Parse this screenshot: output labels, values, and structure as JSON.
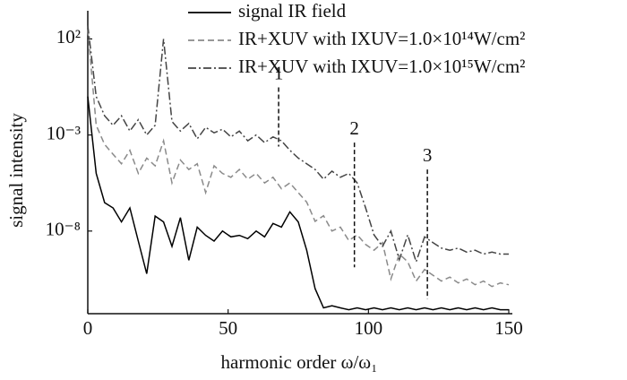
{
  "chart_data": {
    "type": "line",
    "x_label": "harmonic order ω/ω₁",
    "y_label": "signal intensity",
    "xlim": [
      0,
      150
    ],
    "xticks": [
      0,
      50,
      100,
      150
    ],
    "ylim": [
      5e-13,
      1000
    ],
    "yticks": [
      {
        "value": 100,
        "label": "10²"
      },
      {
        "value": 0.001,
        "label": "10⁻³"
      },
      {
        "value": 1e-08,
        "label": "10⁻⁸"
      }
    ],
    "y_scale": "log",
    "legend": "upper right",
    "x": [
      0,
      3,
      6,
      9,
      12,
      15,
      18,
      21,
      24,
      27,
      30,
      33,
      36,
      39,
      42,
      45,
      48,
      51,
      54,
      57,
      60,
      63,
      66,
      69,
      72,
      75,
      78,
      81,
      84,
      87,
      90,
      93,
      96,
      99,
      102,
      105,
      108,
      111,
      114,
      117,
      120,
      123,
      126,
      129,
      132,
      135,
      138,
      141,
      144,
      147,
      150
    ],
    "series": [
      {
        "name": "signal IR field",
        "color": "#000000",
        "dash": "solid",
        "values": [
          0.1,
          1e-05,
          3e-07,
          1.6e-07,
          3e-08,
          1.6e-07,
          3e-09,
          6e-11,
          6e-08,
          3e-08,
          1.6e-09,
          5e-08,
          3e-10,
          1.6e-08,
          6e-09,
          3e-09,
          1e-08,
          5e-09,
          6e-09,
          4e-09,
          1e-08,
          5e-09,
          2.5e-08,
          1.6e-08,
          1e-07,
          3e-08,
          1e-09,
          1e-11,
          1e-12,
          1.3e-12,
          1e-12,
          8e-13,
          1e-12,
          8e-13,
          1e-12,
          8e-13,
          1e-12,
          8e-13,
          1e-12,
          8e-13,
          1e-12,
          8e-13,
          1e-12,
          8e-13,
          1e-12,
          8e-13,
          1e-12,
          8e-13,
          1e-12,
          8e-13,
          8e-13
        ]
      },
      {
        "name": "IR+XUV with IXUV=1.0×10¹⁴W/cm²",
        "color": "#8a8a8a",
        "dash": "dashed",
        "values": [
          316,
          0.0032,
          0.00032,
          0.0001,
          3.2e-05,
          0.00016,
          1e-05,
          6.3e-05,
          2.5e-05,
          0.0005,
          3.2e-06,
          5e-05,
          1.6e-05,
          3.2e-05,
          1e-06,
          2.5e-05,
          1e-05,
          6.3e-06,
          1.6e-05,
          5e-06,
          1e-05,
          3.2e-06,
          6.3e-06,
          1.6e-06,
          3.2e-06,
          1e-06,
          3.2e-07,
          3.2e-08,
          6.3e-08,
          1e-08,
          1.6e-08,
          3.2e-09,
          6.3e-09,
          2e-09,
          1e-09,
          2.5e-09,
          3.2e-11,
          6.3e-10,
          2.5e-10,
          2.5e-11,
          1e-10,
          5e-11,
          2.5e-11,
          4e-11,
          2e-11,
          3.2e-11,
          1.6e-11,
          2.5e-11,
          1.3e-11,
          2e-11,
          1.6e-11
        ]
      },
      {
        "name": "IR+XUV with IXUV=1.0×10¹⁵W/cm²",
        "color": "#444444",
        "dash": "dashdot",
        "values": [
          500,
          0.1,
          0.01,
          0.0032,
          0.01,
          0.0016,
          0.0063,
          0.001,
          0.0032,
          100,
          0.005,
          0.0016,
          0.004,
          0.00063,
          0.0025,
          0.0013,
          0.002,
          0.0008,
          0.0016,
          0.0005,
          0.001,
          0.0004,
          0.0008,
          0.0005,
          0.00016,
          6.3e-05,
          3.2e-05,
          1.6e-05,
          5e-06,
          1.3e-05,
          6.3e-06,
          1e-05,
          3.2e-06,
          1.6e-07,
          6.3e-09,
          1.6e-09,
          1e-08,
          3.2e-10,
          6.3e-09,
          2.5e-10,
          5e-09,
          2.5e-09,
          1.3e-09,
          1e-09,
          1.3e-09,
          8e-10,
          1e-09,
          6.3e-10,
          8e-10,
          6.3e-10,
          6.3e-10
        ]
      }
    ],
    "annotations": [
      {
        "text": "1",
        "x": 68,
        "y": [
          0.3,
          0.00025
        ]
      },
      {
        "text": "2",
        "x": 95,
        "y": [
          0.0004,
          1.3e-10
        ]
      },
      {
        "text": "3",
        "x": 121,
        "y": [
          1.6e-05,
          3e-12
        ]
      }
    ]
  }
}
